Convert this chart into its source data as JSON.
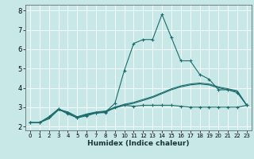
{
  "title": "",
  "xlabel": "Humidex (Indice chaleur)",
  "bg_color": "#c8e8e8",
  "grid_color": "#e8f8f8",
  "line_color": "#1a6b6b",
  "xlim": [
    -0.5,
    23.5
  ],
  "ylim": [
    1.8,
    8.3
  ],
  "xticks": [
    0,
    1,
    2,
    3,
    4,
    5,
    6,
    7,
    8,
    9,
    10,
    11,
    12,
    13,
    14,
    15,
    16,
    17,
    18,
    19,
    20,
    21,
    22,
    23
  ],
  "yticks": [
    2,
    3,
    4,
    5,
    6,
    7,
    8
  ],
  "series": [
    {
      "x": [
        0,
        1,
        2,
        3,
        4,
        5,
        6,
        7,
        8,
        9,
        10,
        11,
        12,
        13,
        14,
        15,
        16,
        17,
        18,
        19,
        20,
        21,
        22,
        23
      ],
      "y": [
        2.2,
        2.2,
        2.5,
        2.9,
        2.7,
        2.45,
        2.6,
        2.7,
        2.72,
        3.0,
        3.1,
        3.05,
        3.1,
        3.1,
        3.1,
        3.1,
        3.05,
        3.0,
        3.0,
        3.0,
        3.0,
        3.0,
        3.0,
        3.1
      ],
      "marker": "+"
    },
    {
      "x": [
        0,
        1,
        2,
        3,
        4,
        5,
        6,
        7,
        8,
        9,
        10,
        11,
        12,
        13,
        14,
        15,
        16,
        17,
        18,
        19,
        20,
        21,
        22,
        23
      ],
      "y": [
        2.2,
        2.2,
        2.4,
        2.85,
        2.75,
        2.5,
        2.65,
        2.75,
        2.8,
        3.0,
        3.15,
        3.25,
        3.4,
        3.55,
        3.75,
        3.95,
        4.1,
        4.2,
        4.25,
        4.2,
        4.05,
        3.95,
        3.85,
        3.1
      ],
      "marker": null
    },
    {
      "x": [
        0,
        1,
        2,
        3,
        4,
        5,
        6,
        7,
        8,
        9,
        10,
        11,
        12,
        13,
        14,
        15,
        16,
        17,
        18,
        19,
        20,
        21,
        22,
        23
      ],
      "y": [
        2.2,
        2.2,
        2.45,
        2.9,
        2.75,
        2.5,
        2.62,
        2.72,
        2.78,
        2.95,
        3.1,
        3.2,
        3.35,
        3.5,
        3.7,
        3.9,
        4.05,
        4.15,
        4.2,
        4.15,
        4.0,
        3.9,
        3.8,
        3.1
      ],
      "marker": null
    },
    {
      "x": [
        0,
        1,
        2,
        3,
        4,
        5,
        6,
        7,
        8,
        9,
        10,
        11,
        12,
        13,
        14,
        15,
        16,
        17,
        18,
        19,
        20,
        21,
        22,
        23
      ],
      "y": [
        2.2,
        2.2,
        2.5,
        2.9,
        2.65,
        2.45,
        2.55,
        2.7,
        2.75,
        3.2,
        4.9,
        6.3,
        6.5,
        6.5,
        7.8,
        6.6,
        5.4,
        5.4,
        4.7,
        4.45,
        3.9,
        3.9,
        3.75,
        3.1
      ],
      "marker": "+"
    }
  ]
}
